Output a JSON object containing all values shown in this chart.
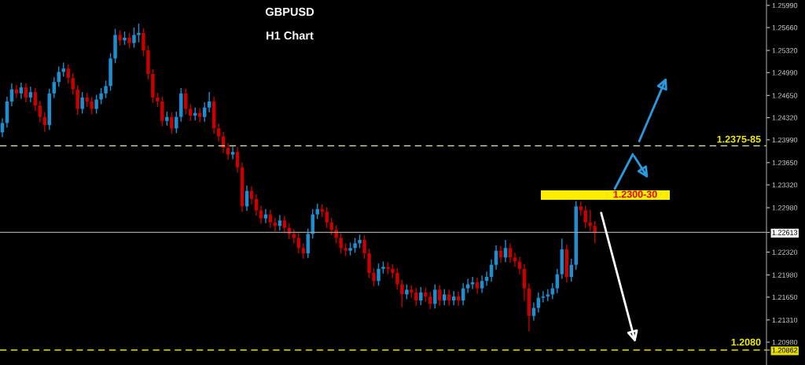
{
  "chart_data": {
    "type": "candlestick",
    "title": "GBPUSD",
    "subtitle": "H1 Chart",
    "categories": [
      null,
      null,
      null,
      null,
      null,
      null,
      null,
      null,
      null,
      null,
      null,
      null,
      null,
      null,
      null,
      null,
      null,
      null,
      null,
      null,
      null,
      null,
      null,
      null,
      null,
      null,
      null,
      null,
      null,
      null,
      null,
      null,
      null,
      null,
      null,
      null,
      null,
      null,
      null,
      null,
      null,
      null,
      null,
      null,
      null,
      null,
      null,
      null,
      null,
      null,
      null,
      null,
      null,
      null,
      null,
      null,
      null,
      null,
      null,
      null,
      null,
      null,
      null,
      null,
      null,
      null,
      null,
      null,
      null,
      null,
      null,
      null,
      null,
      null,
      null,
      null,
      null,
      null,
      null,
      null,
      null,
      null,
      null,
      null,
      null,
      null,
      null,
      null,
      null,
      null,
      null,
      null,
      null,
      null,
      null,
      null,
      null,
      null,
      null,
      null,
      null,
      null,
      null,
      null,
      null,
      null,
      null,
      null,
      null,
      null,
      null,
      null,
      null,
      null,
      null,
      null,
      null,
      null,
      null,
      null,
      null,
      null,
      null,
      null,
      null,
      null,
      null,
      null,
      null,
      null,
      null,
      null,
      null,
      null,
      null,
      null,
      null,
      null,
      null,
      null,
      null,
      null,
      null,
      null,
      null,
      null,
      null,
      null,
      null,
      null,
      null,
      null,
      null,
      null,
      null,
      null,
      null,
      null,
      null,
      null,
      null,
      null,
      null
    ],
    "ohlc": [
      [
        1.241,
        1.2431,
        1.2403,
        1.2424
      ],
      [
        1.2424,
        1.2463,
        1.2417,
        1.2456
      ],
      [
        1.2456,
        1.2483,
        1.2449,
        1.2474
      ],
      [
        1.2474,
        1.2481,
        1.2461,
        1.2468
      ],
      [
        1.2468,
        1.2484,
        1.246,
        1.2477
      ],
      [
        1.2477,
        1.2483,
        1.2455,
        1.2462
      ],
      [
        1.2462,
        1.2478,
        1.2455,
        1.247
      ],
      [
        1.247,
        1.2476,
        1.2442,
        1.245
      ],
      [
        1.245,
        1.2457,
        1.2425,
        1.2433
      ],
      [
        1.2433,
        1.244,
        1.2411,
        1.2421
      ],
      [
        1.2421,
        1.2475,
        1.2414,
        1.2468
      ],
      [
        1.2468,
        1.2492,
        1.2461,
        1.2485
      ],
      [
        1.2485,
        1.2508,
        1.2478,
        1.25
      ],
      [
        1.25,
        1.2514,
        1.2493,
        1.2505
      ],
      [
        1.2505,
        1.2511,
        1.2483,
        1.2491
      ],
      [
        1.2491,
        1.2498,
        1.2466,
        1.2474
      ],
      [
        1.2474,
        1.248,
        1.2436,
        1.2445
      ],
      [
        1.2445,
        1.247,
        1.2438,
        1.2462
      ],
      [
        1.2462,
        1.2469,
        1.2448,
        1.2456
      ],
      [
        1.2456,
        1.2463,
        1.2437,
        1.2445
      ],
      [
        1.2445,
        1.2466,
        1.2438,
        1.2459
      ],
      [
        1.2459,
        1.2476,
        1.2452,
        1.2468
      ],
      [
        1.2468,
        1.2487,
        1.2461,
        1.2479
      ],
      [
        1.2479,
        1.2528,
        1.2472,
        1.252
      ],
      [
        1.252,
        1.2564,
        1.2513,
        1.2555
      ],
      [
        1.2555,
        1.2562,
        1.2539,
        1.2547
      ],
      [
        1.2547,
        1.256,
        1.254,
        1.2551
      ],
      [
        1.2551,
        1.2558,
        1.2535,
        1.2543
      ],
      [
        1.2543,
        1.2566,
        1.2536,
        1.2555
      ],
      [
        1.2555,
        1.2572,
        1.2544,
        1.2558
      ],
      [
        1.2558,
        1.2565,
        1.2524,
        1.2532
      ],
      [
        1.2532,
        1.2539,
        1.2489,
        1.2497
      ],
      [
        1.2497,
        1.2504,
        1.2454,
        1.2462
      ],
      [
        1.2462,
        1.2469,
        1.2448,
        1.2456
      ],
      [
        1.2456,
        1.2463,
        1.2419,
        1.2427
      ],
      [
        1.2427,
        1.2441,
        1.242,
        1.2433
      ],
      [
        1.2433,
        1.244,
        1.2408,
        1.2416
      ],
      [
        1.2416,
        1.2441,
        1.2409,
        1.2433
      ],
      [
        1.2433,
        1.2476,
        1.2426,
        1.2468
      ],
      [
        1.2468,
        1.2475,
        1.2437,
        1.2445
      ],
      [
        1.2445,
        1.2452,
        1.2427,
        1.2435
      ],
      [
        1.2435,
        1.2447,
        1.2428,
        1.2439
      ],
      [
        1.2439,
        1.2446,
        1.2425,
        1.2433
      ],
      [
        1.2433,
        1.2455,
        1.2426,
        1.2447
      ],
      [
        1.2447,
        1.247,
        1.244,
        1.2456
      ],
      [
        1.2456,
        1.2463,
        1.2408,
        1.2416
      ],
      [
        1.2416,
        1.2423,
        1.2396,
        1.2404
      ],
      [
        1.2404,
        1.2411,
        1.2379,
        1.2387
      ],
      [
        1.2387,
        1.2394,
        1.2369,
        1.2377
      ],
      [
        1.2377,
        1.2389,
        1.237,
        1.2381
      ],
      [
        1.2381,
        1.2388,
        1.235,
        1.2358
      ],
      [
        1.2358,
        1.2365,
        1.2292,
        1.23
      ],
      [
        1.23,
        1.2331,
        1.2293,
        1.2323
      ],
      [
        1.2323,
        1.233,
        1.2303,
        1.2311
      ],
      [
        1.2311,
        1.2318,
        1.2286,
        1.2294
      ],
      [
        1.2294,
        1.2301,
        1.2274,
        1.2282
      ],
      [
        1.2282,
        1.2296,
        1.2275,
        1.2288
      ],
      [
        1.2288,
        1.2295,
        1.2268,
        1.2276
      ],
      [
        1.2276,
        1.2283,
        1.2263,
        1.2271
      ],
      [
        1.2271,
        1.2287,
        1.2264,
        1.2279
      ],
      [
        1.2279,
        1.2286,
        1.226,
        1.2268
      ],
      [
        1.2268,
        1.2275,
        1.2251,
        1.2259
      ],
      [
        1.2259,
        1.2266,
        1.2245,
        1.2253
      ],
      [
        1.2253,
        1.226,
        1.223,
        1.2238
      ],
      [
        1.2238,
        1.2245,
        1.2222,
        1.223
      ],
      [
        1.223,
        1.2267,
        1.2223,
        1.2259
      ],
      [
        1.2259,
        1.2296,
        1.2252,
        1.2288
      ],
      [
        1.2288,
        1.2304,
        1.2281,
        1.2296
      ],
      [
        1.2296,
        1.2303,
        1.2284,
        1.2292
      ],
      [
        1.2292,
        1.2299,
        1.2268,
        1.2276
      ],
      [
        1.2276,
        1.2283,
        1.2257,
        1.2265
      ],
      [
        1.2265,
        1.2272,
        1.2245,
        1.2253
      ],
      [
        1.2253,
        1.226,
        1.223,
        1.2238
      ],
      [
        1.2238,
        1.2245,
        1.2226,
        1.2234
      ],
      [
        1.2234,
        1.2246,
        1.2227,
        1.2238
      ],
      [
        1.2238,
        1.2253,
        1.2231,
        1.2245
      ],
      [
        1.2245,
        1.2258,
        1.2238,
        1.225
      ],
      [
        1.225,
        1.2257,
        1.2222,
        1.223
      ],
      [
        1.223,
        1.2237,
        1.2193,
        1.2201
      ],
      [
        1.2201,
        1.2208,
        1.2181,
        1.2189
      ],
      [
        1.2189,
        1.2215,
        1.2182,
        1.2207
      ],
      [
        1.2207,
        1.2218,
        1.22,
        1.221
      ],
      [
        1.221,
        1.2217,
        1.2199,
        1.2207
      ],
      [
        1.2207,
        1.2214,
        1.2193,
        1.2201
      ],
      [
        1.2201,
        1.2208,
        1.2176,
        1.2184
      ],
      [
        1.2184,
        1.2191,
        1.215,
        1.2169
      ],
      [
        1.2169,
        1.2184,
        1.2162,
        1.2176
      ],
      [
        1.2176,
        1.2183,
        1.2164,
        1.2172
      ],
      [
        1.2172,
        1.2179,
        1.2152,
        1.216
      ],
      [
        1.216,
        1.218,
        1.2153,
        1.2172
      ],
      [
        1.2172,
        1.2179,
        1.2158,
        1.2166
      ],
      [
        1.2166,
        1.2173,
        1.2147,
        1.2155
      ],
      [
        1.2155,
        1.2184,
        1.2148,
        1.2176
      ],
      [
        1.2176,
        1.2183,
        1.2152,
        1.216
      ],
      [
        1.216,
        1.2177,
        1.2153,
        1.2169
      ],
      [
        1.2169,
        1.2176,
        1.2152,
        1.216
      ],
      [
        1.216,
        1.2174,
        1.2153,
        1.2166
      ],
      [
        1.2166,
        1.2173,
        1.2152,
        1.216
      ],
      [
        1.216,
        1.2186,
        1.2153,
        1.2178
      ],
      [
        1.2178,
        1.2192,
        1.2171,
        1.2184
      ],
      [
        1.2184,
        1.2195,
        1.2177,
        1.2187
      ],
      [
        1.2187,
        1.2194,
        1.217,
        1.2178
      ],
      [
        1.2178,
        1.2197,
        1.2171,
        1.2189
      ],
      [
        1.2189,
        1.2203,
        1.2182,
        1.2195
      ],
      [
        1.2195,
        1.2221,
        1.2188,
        1.2213
      ],
      [
        1.2213,
        1.2242,
        1.2206,
        1.2234
      ],
      [
        1.2234,
        1.2241,
        1.2216,
        1.2224
      ],
      [
        1.2224,
        1.225,
        1.2217,
        1.2238
      ],
      [
        1.2238,
        1.2245,
        1.2216,
        1.2224
      ],
      [
        1.2224,
        1.2231,
        1.221,
        1.2218
      ],
      [
        1.2218,
        1.2225,
        1.2199,
        1.2207
      ],
      [
        1.2207,
        1.2214,
        1.216,
        1.2178
      ],
      [
        1.2178,
        1.2185,
        1.2114,
        1.2137
      ],
      [
        1.2137,
        1.2157,
        1.213,
        1.2149
      ],
      [
        1.2149,
        1.2172,
        1.2142,
        1.2164
      ],
      [
        1.2164,
        1.2174,
        1.2157,
        1.2166
      ],
      [
        1.2166,
        1.2177,
        1.2159,
        1.2169
      ],
      [
        1.2169,
        1.2186,
        1.2162,
        1.2178
      ],
      [
        1.2178,
        1.2207,
        1.2171,
        1.2199
      ],
      [
        1.2199,
        1.2252,
        1.2192,
        1.2236
      ],
      [
        1.2236,
        1.2243,
        1.2187,
        1.2195
      ],
      [
        1.2195,
        1.2222,
        1.2188,
        1.2213
      ],
      [
        1.2213,
        1.2308,
        1.2206,
        1.23
      ],
      [
        1.23,
        1.2307,
        1.2286,
        1.2294
      ],
      [
        1.2294,
        1.2301,
        1.2268,
        1.2276
      ],
      [
        1.2276,
        1.2295,
        1.2263,
        1.2271
      ],
      [
        1.2271,
        1.2278,
        1.2245,
        1.2261
      ],
      null,
      null,
      null,
      null,
      null,
      null,
      null,
      null,
      null,
      null,
      null,
      null,
      null,
      null,
      null,
      null,
      null,
      null,
      null,
      null,
      null,
      null,
      null,
      null,
      null,
      null,
      null,
      null,
      null,
      null,
      null,
      null,
      null,
      null,
      null,
      null
    ],
    "colors": [
      "#1e8fd0",
      "#1e8fd0",
      "#1e8fd0",
      "#c80000",
      "#1e8fd0",
      "#c80000",
      "#1e8fd0",
      "#c80000",
      "#c80000",
      "#c80000",
      "#1e8fd0",
      "#1e8fd0",
      "#1e8fd0",
      "#1e8fd0",
      "#c80000",
      "#c80000",
      "#c80000",
      "#1e8fd0",
      "#c80000",
      "#c80000",
      "#1e8fd0",
      "#1e8fd0",
      "#1e8fd0",
      "#1e8fd0",
      "#1e8fd0",
      "#c80000",
      "#1e8fd0",
      "#c80000",
      "#1e8fd0",
      "#1e8fd0",
      "#c80000",
      "#c80000",
      "#c80000",
      "#c80000",
      "#c80000",
      "#1e8fd0",
      "#c80000",
      "#1e8fd0",
      "#1e8fd0",
      "#c80000",
      "#c80000",
      "#1e8fd0",
      "#c80000",
      "#1e8fd0",
      "#1e8fd0",
      "#c80000",
      "#c80000",
      "#c80000",
      "#c80000",
      "#1e8fd0",
      "#c80000",
      "#c80000",
      "#1e8fd0",
      "#c80000",
      "#c80000",
      "#c80000",
      "#1e8fd0",
      "#c80000",
      "#c80000",
      "#1e8fd0",
      "#c80000",
      "#c80000",
      "#c80000",
      "#c80000",
      "#c80000",
      "#1e8fd0",
      "#1e8fd0",
      "#1e8fd0",
      "#c80000",
      "#c80000",
      "#c80000",
      "#c80000",
      "#c80000",
      "#c80000",
      "#1e8fd0",
      "#1e8fd0",
      "#1e8fd0",
      "#c80000",
      "#c80000",
      "#c80000",
      "#1e8fd0",
      "#1e8fd0",
      "#c80000",
      "#c80000",
      "#c80000",
      "#c80000",
      "#1e8fd0",
      "#c80000",
      "#c80000",
      "#1e8fd0",
      "#c80000",
      "#c80000",
      "#1e8fd0",
      "#c80000",
      "#1e8fd0",
      "#c80000",
      "#1e8fd0",
      "#c80000",
      "#1e8fd0",
      "#1e8fd0",
      "#1e8fd0",
      "#c80000",
      "#1e8fd0",
      "#1e8fd0",
      "#1e8fd0",
      "#1e8fd0",
      "#c80000",
      "#1e8fd0",
      "#c80000",
      "#c80000",
      "#c80000",
      "#c80000",
      "#c80000",
      "#1e8fd0",
      "#1e8fd0",
      "#1e8fd0",
      "#1e8fd0",
      "#1e8fd0",
      "#1e8fd0",
      "#1e8fd0",
      "#c80000",
      "#1e8fd0",
      "#1e8fd0",
      "#c80000",
      "#c80000",
      "#c80000",
      "#c80000",
      null,
      null,
      null,
      null,
      null,
      null,
      null,
      null,
      null,
      null,
      null,
      null,
      null,
      null,
      null,
      null,
      null,
      null,
      null,
      null,
      null,
      null,
      null,
      null,
      null,
      null,
      null,
      null,
      null,
      null,
      null,
      null,
      null,
      null,
      null,
      null
    ],
    "ylim": [
      1.2064,
      1.2607
    ],
    "yticks": [
      {
        "value": 1.2599,
        "label": "1.25990"
      },
      {
        "value": 1.2566,
        "label": "1.25660"
      },
      {
        "value": 1.2532,
        "label": "1.25320"
      },
      {
        "value": 1.2499,
        "label": "1.24990"
      },
      {
        "value": 1.2465,
        "label": "1.24650"
      },
      {
        "value": 1.2432,
        "label": "1.24320"
      },
      {
        "value": 1.2399,
        "label": "1.23990"
      },
      {
        "value": 1.2365,
        "label": "1.23650"
      },
      {
        "value": 1.2332,
        "label": "1.23320"
      },
      {
        "value": 1.2298,
        "label": "1.22980"
      },
      {
        "value": 1.22613,
        "label": "1.22613"
      },
      {
        "value": 1.2232,
        "label": "1.22320"
      },
      {
        "value": 1.2198,
        "label": "1.21980"
      },
      {
        "value": 1.2165,
        "label": "1.21650"
      },
      {
        "value": 1.2131,
        "label": "1.21310"
      },
      {
        "value": 1.2098,
        "label": "1.20980"
      },
      {
        "value": 1.20862,
        "label": "1.20862"
      }
    ],
    "tick_labels": "y",
    "grid": false,
    "ref_lines": [
      {
        "axis": "y",
        "value": 1.239,
        "color": "#e8e8a0",
        "line_style": "dashed"
      },
      {
        "axis": "y",
        "value": 1.22613,
        "color": "#a0a0a0",
        "line_style": "solid"
      },
      {
        "axis": "y",
        "value": 1.20862,
        "color": "#e8e000",
        "line_style": "dashed"
      }
    ],
    "annotations": [
      "1.2375-85",
      "1.2300-30",
      "1.2080"
    ]
  }
}
